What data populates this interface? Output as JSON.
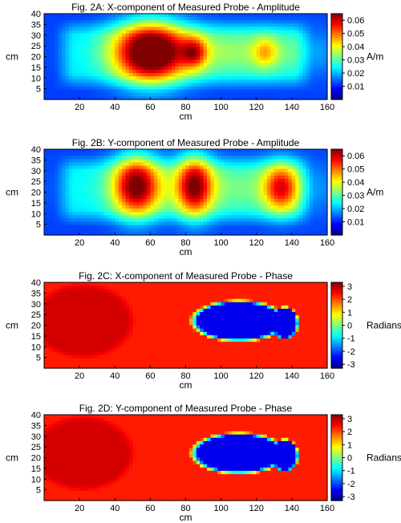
{
  "chart_data": [
    {
      "type": "heatmap",
      "title": "Fig. 2A: X-component of Measured Probe - Amplitude",
      "xlabel": "cm",
      "ylabel": "cm",
      "xlim": [
        0,
        160
      ],
      "ylim": [
        0,
        40
      ],
      "xticks": [
        "20",
        "40",
        "60",
        "80",
        "100",
        "120",
        "140",
        "160"
      ],
      "yticks": [
        "5",
        "10",
        "15",
        "20",
        "25",
        "30",
        "35",
        "40"
      ],
      "colorbar": {
        "label": "A/m",
        "ticks": [
          "0.01",
          "0.02",
          "0.03",
          "0.04",
          "0.05",
          "0.06"
        ],
        "range": [
          0,
          0.065
        ],
        "colormap": "jet"
      },
      "field": {
        "base": 0.012,
        "plateau": {
          "x": [
            6,
            152
          ],
          "y": [
            4,
            38
          ],
          "value": 0.022
        },
        "bumps": [
          {
            "x": 60,
            "y": 22,
            "sx": 14,
            "sy": 10,
            "amp": 0.05
          },
          {
            "x": 85,
            "y": 22,
            "sx": 5,
            "sy": 5,
            "amp": 0.022
          },
          {
            "x": 125,
            "y": 22,
            "sx": 5,
            "sy": 5,
            "amp": 0.014
          },
          {
            "x": 105,
            "y": 22,
            "sx": 44,
            "sy": 8,
            "amp": 0.012
          }
        ]
      }
    },
    {
      "type": "heatmap",
      "title": "Fig. 2B: Y-component of Measured Probe - Amplitude",
      "xlabel": "cm",
      "ylabel": "cm",
      "xlim": [
        0,
        160
      ],
      "ylim": [
        0,
        40
      ],
      "xticks": [
        "20",
        "40",
        "60",
        "80",
        "100",
        "120",
        "140",
        "160"
      ],
      "yticks": [
        "5",
        "10",
        "15",
        "20",
        "25",
        "30",
        "35",
        "40"
      ],
      "colorbar": {
        "label": "A/m",
        "ticks": [
          "0.01",
          "0.02",
          "0.03",
          "0.04",
          "0.05",
          "0.06"
        ],
        "range": [
          0,
          0.065
        ],
        "colormap": "jet"
      },
      "field": {
        "base": 0.012,
        "plateau": {
          "x": [
            6,
            152
          ],
          "y": [
            4,
            38
          ],
          "value": 0.022
        },
        "bumps": [
          {
            "x": 52,
            "y": 23,
            "sx": 9,
            "sy": 10,
            "amp": 0.04
          },
          {
            "x": 85,
            "y": 23,
            "sx": 7,
            "sy": 10,
            "amp": 0.036
          },
          {
            "x": 134,
            "y": 22,
            "sx": 7,
            "sy": 8,
            "amp": 0.03
          },
          {
            "x": 100,
            "y": 22,
            "sx": 50,
            "sy": 9,
            "amp": 0.01
          }
        ]
      }
    },
    {
      "type": "heatmap",
      "title": "Fig. 2C: X-component of Measured Probe - Phase",
      "xlabel": "cm",
      "ylabel": "cm",
      "xlim": [
        0,
        160
      ],
      "ylim": [
        0,
        40
      ],
      "xticks": [
        "20",
        "40",
        "60",
        "80",
        "100",
        "120",
        "140",
        "160"
      ],
      "yticks": [
        "5",
        "10",
        "15",
        "20",
        "25",
        "30",
        "35",
        "40"
      ],
      "colorbar": {
        "label": "Radians",
        "ticks": [
          "3",
          "2",
          "1",
          "0",
          "-1",
          "-2",
          "-3"
        ],
        "range": [
          -3.3,
          3.3
        ],
        "colormap": "jet"
      },
      "field": {
        "background": 2.3,
        "regions": [
          {
            "shape": "ellipse",
            "x": 22,
            "y": 22,
            "rx": 30,
            "ry": 18,
            "value": 2.75
          },
          {
            "shape": "ellipse",
            "x": 110,
            "y": 22,
            "rx": 28,
            "ry": 10,
            "value": -2.6
          },
          {
            "shape": "ellipse",
            "x": 136,
            "y": 21,
            "rx": 8,
            "ry": 8,
            "value": -2.6
          }
        ]
      }
    },
    {
      "type": "heatmap",
      "title": "Fig. 2D: Y-component of Measured Probe - Phase",
      "xlabel": "cm",
      "ylabel": "cm",
      "xlim": [
        0,
        160
      ],
      "ylim": [
        0,
        40
      ],
      "xticks": [
        "20",
        "40",
        "60",
        "80",
        "100",
        "120",
        "140",
        "160"
      ],
      "yticks": [
        "5",
        "10",
        "15",
        "20",
        "25",
        "30",
        "35",
        "40"
      ],
      "colorbar": {
        "label": "Radians",
        "ticks": [
          "3",
          "2",
          "1",
          "0",
          "-1",
          "-2",
          "-3"
        ],
        "range": [
          -3.3,
          3.3
        ],
        "colormap": "jet"
      },
      "field": {
        "background": 2.3,
        "regions": [
          {
            "shape": "ellipse",
            "x": 22,
            "y": 22,
            "rx": 30,
            "ry": 18,
            "value": 2.75
          },
          {
            "shape": "ellipse",
            "x": 110,
            "y": 22,
            "rx": 28,
            "ry": 10,
            "value": -2.6
          },
          {
            "shape": "ellipse",
            "x": 136,
            "y": 21,
            "rx": 8,
            "ry": 8,
            "value": -2.6
          }
        ]
      }
    }
  ]
}
